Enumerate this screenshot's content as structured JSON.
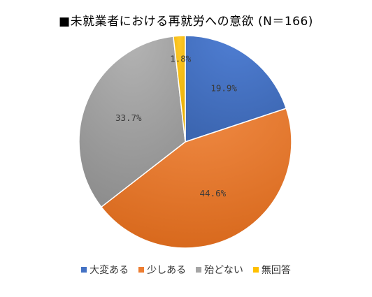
{
  "chart_data": {
    "type": "pie",
    "title": "■未就業者における再就労への意欲 (N＝166)",
    "slices": [
      {
        "label": "大変ある",
        "value": 19.9,
        "display": "19.9%",
        "color": "#4472C4"
      },
      {
        "label": "少しある",
        "value": 44.6,
        "display": "44.6%",
        "color": "#ED7D31"
      },
      {
        "label": "殆どない",
        "value": 33.7,
        "display": "33.7%",
        "color": "#A5A5A5"
      },
      {
        "label": "無回答",
        "value": 1.8,
        "display": "1.8%",
        "color": "#FFC000"
      }
    ],
    "start_angle": "12 o'clock",
    "direction": "clockwise",
    "legend_position": "bottom"
  }
}
